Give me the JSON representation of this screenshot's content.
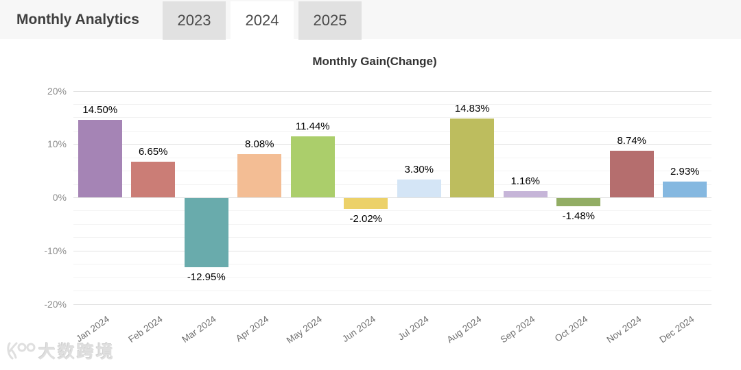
{
  "header": {
    "title": "Monthly Analytics",
    "tabs": [
      {
        "label": "2023",
        "selected": false
      },
      {
        "label": "2024",
        "selected": true
      },
      {
        "label": "2025",
        "selected": false
      }
    ]
  },
  "watermark": {
    "logo": "100-swirl-logo",
    "text": "大数跨境"
  },
  "chart_data": {
    "type": "bar",
    "title": "Monthly Gain(Change)",
    "categories": [
      "Jan 2024",
      "Feb 2024",
      "Mar 2024",
      "Apr 2024",
      "May 2024",
      "Jun 2024",
      "Jul 2024",
      "Aug 2024",
      "Sep 2024",
      "Oct 2024",
      "Nov 2024",
      "Dec 2024"
    ],
    "values": [
      14.5,
      6.65,
      -12.95,
      8.08,
      11.44,
      -2.02,
      3.3,
      14.83,
      1.16,
      -1.48,
      8.74,
      2.93
    ],
    "value_labels": [
      "14.50%",
      "6.65%",
      "-12.95%",
      "8.08%",
      "11.44%",
      "-2.02%",
      "3.30%",
      "14.83%",
      "1.16%",
      "-1.48%",
      "8.74%",
      "2.93%"
    ],
    "bar_colors": [
      "#a584b5",
      "#cb7d76",
      "#69abac",
      "#f3bd94",
      "#abce6b",
      "#ecd169",
      "#d4e5f6",
      "#bdbd5e",
      "#c6b5d8",
      "#92ad64",
      "#b56e6e",
      "#85b8e0"
    ],
    "xlabel": "",
    "ylabel": "",
    "ylim": [
      -20,
      20
    ],
    "yticks": [
      20,
      10,
      0,
      -10,
      -20
    ],
    "ytick_labels": [
      "20%",
      "10%",
      "0%",
      "-10%",
      "-20%"
    ],
    "minor_grid_step": 2.5,
    "grid": true,
    "legend": false,
    "grid_color_major": "#e2e2e2",
    "grid_color_minor": "#f3f3f3"
  }
}
